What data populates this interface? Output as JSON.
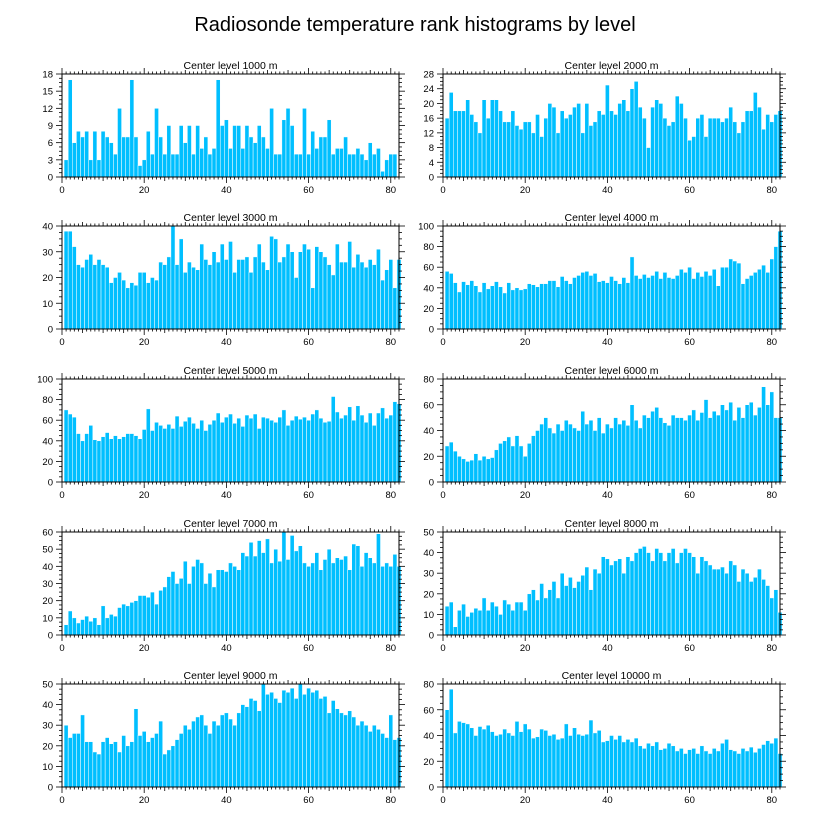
{
  "figure_title": "Radiosonde temperature rank histograms by level",
  "bar_color": "#00BFFF",
  "chart_data": [
    {
      "type": "bar",
      "title": "Center level 1000 m",
      "xlim": [
        0,
        82
      ],
      "ylim": [
        0,
        18
      ],
      "xticks": [
        0,
        20,
        40,
        60,
        80
      ],
      "yticks": [
        0,
        3,
        6,
        9,
        12,
        15,
        18
      ],
      "x_start": 1,
      "values": [
        3,
        17,
        6,
        8,
        7,
        8,
        3,
        8,
        3,
        8,
        7,
        6,
        4,
        12,
        7,
        7,
        17,
        7,
        2,
        3,
        8,
        4,
        12,
        7,
        4,
        9,
        4,
        4,
        9,
        6,
        9,
        4,
        9,
        5,
        7,
        4,
        5,
        17,
        9,
        10,
        5,
        9,
        9,
        5,
        9,
        7,
        6,
        9,
        7,
        5,
        12,
        4,
        4,
        10,
        12,
        9,
        4,
        4,
        12,
        4,
        8,
        5,
        7,
        7,
        10,
        4,
        5,
        5,
        7,
        4,
        4,
        5,
        4,
        3,
        6,
        4,
        5,
        1,
        3,
        4,
        4
      ]
    },
    {
      "type": "bar",
      "title": "Center level 2000 m",
      "xlim": [
        0,
        82
      ],
      "ylim": [
        0,
        28
      ],
      "xticks": [
        0,
        20,
        40,
        60,
        80
      ],
      "yticks": [
        0,
        4,
        8,
        12,
        16,
        20,
        24,
        28
      ],
      "x_start": 1,
      "values": [
        16,
        23,
        18,
        18,
        18,
        21,
        17,
        15,
        12,
        21,
        16,
        21,
        21,
        18,
        15,
        15,
        18,
        14,
        13,
        15,
        15,
        12,
        17,
        11,
        16,
        20,
        19,
        12,
        18,
        16,
        17,
        19,
        20,
        12,
        20,
        14,
        15,
        18,
        17,
        25,
        18,
        17,
        20,
        21,
        18,
        24,
        26,
        19,
        16,
        8,
        19,
        21,
        20,
        16,
        14,
        15,
        22,
        20,
        16,
        10,
        11,
        16,
        17,
        11,
        16,
        16,
        16,
        15,
        16,
        19,
        15,
        12,
        15,
        18,
        18,
        23,
        19,
        13,
        17,
        15,
        17,
        18
      ]
    },
    {
      "type": "bar",
      "title": "Center level 3000 m",
      "xlim": [
        0,
        82
      ],
      "ylim": [
        0,
        40
      ],
      "xticks": [
        0,
        20,
        40,
        60,
        80
      ],
      "yticks": [
        0,
        10,
        20,
        30,
        40
      ],
      "x_start": 1,
      "values": [
        38,
        38,
        32,
        25,
        24,
        27,
        29,
        25,
        27,
        25,
        24,
        18,
        20,
        22,
        19,
        16,
        18,
        17,
        22,
        22,
        18,
        20,
        19,
        26,
        25,
        28,
        40,
        25,
        35,
        22,
        26,
        24,
        23,
        33,
        27,
        25,
        30,
        26,
        33,
        27,
        34,
        22,
        27,
        27,
        28,
        22,
        28,
        33,
        26,
        23,
        36,
        35,
        26,
        28,
        33,
        30,
        20,
        30,
        33,
        31,
        16,
        32,
        30,
        28,
        25,
        21,
        33,
        26,
        26,
        34,
        24,
        29,
        26,
        24,
        27,
        25,
        31,
        19,
        23,
        27,
        16,
        27
      ]
    },
    {
      "type": "bar",
      "title": "Center level 4000 m",
      "xlim": [
        0,
        82
      ],
      "ylim": [
        0,
        100
      ],
      "xticks": [
        0,
        20,
        40,
        60,
        80
      ],
      "yticks": [
        0,
        20,
        40,
        60,
        80,
        100
      ],
      "x_start": 1,
      "values": [
        56,
        54,
        45,
        36,
        46,
        43,
        47,
        42,
        36,
        45,
        39,
        42,
        46,
        41,
        35,
        45,
        38,
        40,
        38,
        39,
        44,
        43,
        41,
        44,
        44,
        47,
        47,
        41,
        51,
        47,
        44,
        50,
        52,
        55,
        56,
        52,
        54,
        46,
        47,
        45,
        51,
        47,
        44,
        50,
        45,
        70,
        52,
        49,
        53,
        50,
        52,
        56,
        49,
        55,
        50,
        49,
        52,
        58,
        55,
        60,
        49,
        55,
        51,
        56,
        52,
        58,
        42,
        60,
        60,
        68,
        66,
        64,
        44,
        49,
        52,
        55,
        58,
        62,
        55,
        68,
        80,
        95
      ]
    },
    {
      "type": "bar",
      "title": "Center level 5000 m",
      "xlim": [
        0,
        82
      ],
      "ylim": [
        0,
        100
      ],
      "xticks": [
        0,
        20,
        40,
        60,
        80
      ],
      "yticks": [
        0,
        20,
        40,
        60,
        80,
        100
      ],
      "x_start": 1,
      "values": [
        70,
        66,
        63,
        47,
        40,
        47,
        55,
        41,
        40,
        44,
        48,
        42,
        45,
        42,
        44,
        47,
        47,
        45,
        42,
        51,
        71,
        50,
        58,
        55,
        52,
        56,
        52,
        64,
        54,
        59,
        63,
        57,
        52,
        60,
        50,
        56,
        60,
        67,
        58,
        63,
        66,
        57,
        62,
        54,
        65,
        62,
        66,
        52,
        63,
        62,
        60,
        58,
        63,
        70,
        55,
        60,
        64,
        61,
        63,
        60,
        66,
        70,
        62,
        58,
        59,
        83,
        68,
        62,
        65,
        73,
        60,
        74,
        65,
        58,
        67,
        55,
        67,
        72,
        62,
        65,
        78,
        76
      ]
    },
    {
      "type": "bar",
      "title": "Center level 6000 m",
      "xlim": [
        0,
        82
      ],
      "ylim": [
        0,
        80
      ],
      "xticks": [
        0,
        20,
        40,
        60,
        80
      ],
      "yticks": [
        0,
        20,
        40,
        60,
        80
      ],
      "x_start": 1,
      "values": [
        28,
        31,
        24,
        20,
        18,
        16,
        17,
        22,
        17,
        20,
        18,
        19,
        25,
        30,
        32,
        35,
        28,
        36,
        28,
        20,
        30,
        36,
        40,
        45,
        50,
        42,
        38,
        45,
        40,
        48,
        45,
        42,
        40,
        55,
        45,
        48,
        40,
        50,
        38,
        45,
        42,
        50,
        45,
        48,
        44,
        60,
        48,
        42,
        52,
        50,
        55,
        58,
        50,
        46,
        44,
        52,
        50,
        50,
        48,
        52,
        56,
        48,
        54,
        64,
        50,
        55,
        52,
        60,
        56,
        62,
        48,
        58,
        50,
        60,
        62,
        52,
        58,
        74,
        60,
        70,
        50,
        50
      ]
    },
    {
      "type": "bar",
      "title": "Center level 7000 m",
      "xlim": [
        0,
        82
      ],
      "ylim": [
        0,
        60
      ],
      "xticks": [
        0,
        20,
        40,
        60,
        80
      ],
      "yticks": [
        0,
        10,
        20,
        30,
        40,
        50,
        60
      ],
      "x_start": 1,
      "values": [
        6,
        14,
        10,
        7,
        9,
        11,
        8,
        10,
        6,
        17,
        10,
        12,
        11,
        16,
        18,
        17,
        19,
        20,
        23,
        23,
        22,
        25,
        18,
        26,
        28,
        34,
        37,
        30,
        33,
        43,
        30,
        40,
        44,
        42,
        30,
        36,
        28,
        38,
        38,
        37,
        42,
        40,
        38,
        48,
        46,
        54,
        46,
        55,
        48,
        56,
        42,
        50,
        43,
        60,
        44,
        58,
        49,
        52,
        42,
        40,
        42,
        48,
        38,
        44,
        50,
        42,
        45,
        44,
        46,
        38,
        53,
        52,
        40,
        48,
        45,
        42,
        59,
        40,
        42,
        40,
        47,
        40
      ]
    },
    {
      "type": "bar",
      "title": "Center level 8000 m",
      "xlim": [
        0,
        82
      ],
      "ylim": [
        0,
        50
      ],
      "xticks": [
        0,
        20,
        40,
        60,
        80
      ],
      "yticks": [
        0,
        10,
        20,
        30,
        40,
        50
      ],
      "x_start": 1,
      "values": [
        14,
        16,
        4,
        12,
        15,
        9,
        11,
        13,
        12,
        18,
        12,
        16,
        14,
        10,
        17,
        15,
        12,
        16,
        16,
        12,
        20,
        22,
        17,
        25,
        18,
        22,
        26,
        18,
        30,
        24,
        28,
        23,
        26,
        29,
        33,
        22,
        32,
        30,
        38,
        37,
        34,
        36,
        37,
        30,
        38,
        36,
        40,
        42,
        43,
        40,
        36,
        42,
        40,
        36,
        40,
        42,
        35,
        40,
        42,
        40,
        38,
        30,
        38,
        36,
        34,
        32,
        32,
        33,
        30,
        36,
        34,
        26,
        32,
        30,
        26,
        28,
        32,
        27,
        24,
        18,
        22,
        11
      ]
    },
    {
      "type": "bar",
      "title": "Center level 9000 m",
      "xlim": [
        0,
        82
      ],
      "ylim": [
        0,
        50
      ],
      "xticks": [
        0,
        20,
        40,
        60,
        80
      ],
      "yticks": [
        0,
        10,
        20,
        30,
        40,
        50
      ],
      "x_start": 1,
      "values": [
        30,
        24,
        26,
        26,
        35,
        22,
        22,
        17,
        16,
        22,
        24,
        21,
        22,
        17,
        25,
        20,
        22,
        38,
        25,
        27,
        22,
        24,
        26,
        32,
        16,
        18,
        20,
        23,
        26,
        30,
        28,
        32,
        34,
        35,
        30,
        26,
        32,
        30,
        35,
        36,
        33,
        30,
        36,
        40,
        39,
        43,
        42,
        37,
        50,
        45,
        46,
        43,
        41,
        47,
        46,
        48,
        43,
        50,
        45,
        48,
        46,
        47,
        43,
        44,
        36,
        42,
        38,
        36,
        35,
        37,
        34,
        30,
        32,
        30,
        27,
        30,
        28,
        26,
        24,
        35,
        23,
        24
      ]
    },
    {
      "type": "bar",
      "title": "Center level 10000 m",
      "xlim": [
        0,
        82
      ],
      "ylim": [
        0,
        80
      ],
      "xticks": [
        0,
        20,
        40,
        60,
        80
      ],
      "yticks": [
        0,
        20,
        40,
        60,
        80
      ],
      "x_start": 1,
      "values": [
        60,
        76,
        42,
        51,
        50,
        49,
        46,
        40,
        47,
        45,
        48,
        43,
        40,
        41,
        45,
        42,
        40,
        51,
        43,
        49,
        45,
        38,
        39,
        45,
        44,
        40,
        41,
        37,
        38,
        49,
        40,
        46,
        41,
        40,
        41,
        52,
        42,
        44,
        35,
        36,
        40,
        37,
        40,
        35,
        37,
        35,
        38,
        32,
        30,
        34,
        32,
        35,
        29,
        30,
        34,
        32,
        28,
        30,
        26,
        29,
        30,
        26,
        32,
        28,
        26,
        30,
        28,
        34,
        37,
        29,
        28,
        26,
        30,
        28,
        31,
        27,
        30,
        33,
        36,
        34,
        38,
        26
      ]
    }
  ]
}
